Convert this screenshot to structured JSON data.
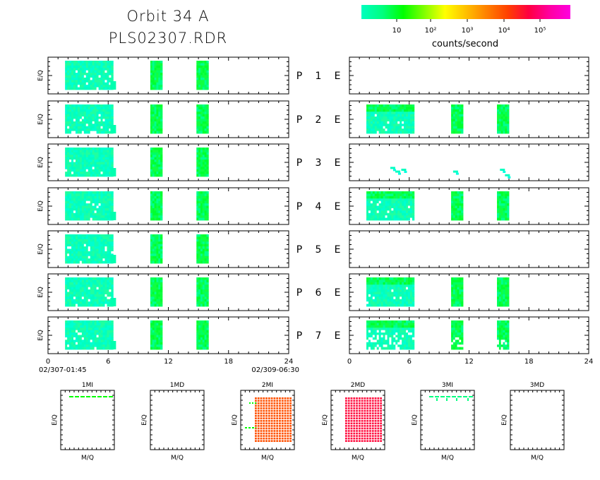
{
  "header": {
    "orbit_title": "Orbit 34 A",
    "file_title": "PLS02307.RDR"
  },
  "colorbar": {
    "label": "counts/second",
    "ticks": [
      "10",
      "10²",
      "10³",
      "10⁴",
      "10⁵"
    ],
    "gradient": [
      "#00ffc0",
      "#00ff80",
      "#00ff00",
      "#80ff00",
      "#ffff00",
      "#ffc000",
      "#ff8000",
      "#ff4000",
      "#ff0040",
      "#ff00a0",
      "#ff00e0"
    ]
  },
  "panels": {
    "ylabel": "E/Q",
    "p_letter": "P",
    "e_letter": "E",
    "rows": [
      {
        "num": "1",
        "left": "full",
        "right": "empty"
      },
      {
        "num": "2",
        "left": "full",
        "right": "full"
      },
      {
        "num": "3",
        "left": "full",
        "right": "sparse"
      },
      {
        "num": "4",
        "left": "full",
        "right": "full"
      },
      {
        "num": "5",
        "left": "full",
        "right": "empty"
      },
      {
        "num": "6",
        "left": "full",
        "right": "full"
      },
      {
        "num": "7",
        "left": "full",
        "right": "holes"
      }
    ],
    "left_xticks": [
      "0",
      "6",
      "12",
      "18",
      "24"
    ],
    "right_xticks": [
      "0",
      "6",
      "12",
      "18",
      "24"
    ],
    "start_time": "02/307-01:45",
    "end_time": "02/309-06:30"
  },
  "chart_data": {
    "type": "heatmap",
    "title": "Orbit 34 A",
    "subtitle": "PLS02307.RDR",
    "colorbar_label": "counts/second",
    "colorbar_scale": "log",
    "ylabel": "E/Q",
    "xlim": [
      0,
      24
    ],
    "xticks": [
      0,
      6,
      12,
      18,
      24
    ],
    "data_blocks_hours": [
      [
        1.7,
        6.5
      ],
      [
        10.2,
        11.4
      ],
      [
        14.8,
        16.0
      ]
    ],
    "rows": [
      "P 1 E",
      "P 2 E",
      "P 3 E",
      "P 4 E",
      "P 5 E",
      "P 6 E",
      "P 7 E"
    ]
  },
  "bottom_plots": {
    "xlabel": "M/Q",
    "ylabel": "E/Q",
    "items": [
      {
        "title": "1MI",
        "fill": "line",
        "color": "#00ff00"
      },
      {
        "title": "1MD",
        "fill": "none",
        "color": ""
      },
      {
        "title": "2MI",
        "fill": "grid",
        "color": "#ff5000"
      },
      {
        "title": "2MD",
        "fill": "grid",
        "color": "#ff1040"
      },
      {
        "title": "3MI",
        "fill": "line",
        "color": "#00ff80"
      },
      {
        "title": "3MD",
        "fill": "none",
        "color": ""
      }
    ]
  }
}
